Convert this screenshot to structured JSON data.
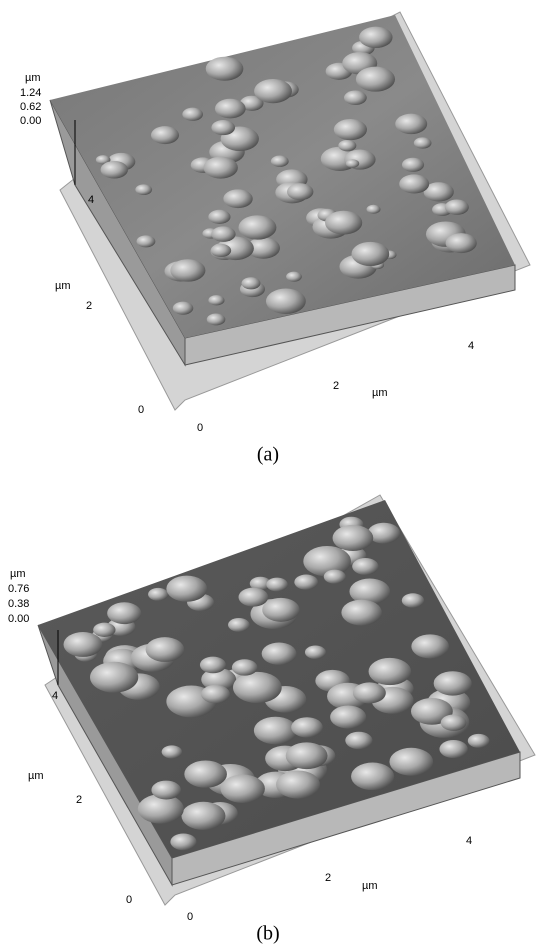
{
  "panels": [
    {
      "label": "(a)",
      "z_unit": "µm",
      "z_ticks": [
        "1.24",
        "0.62",
        "0.00"
      ],
      "y_unit": "µm",
      "y_ticks": [
        "4",
        "2",
        "0"
      ],
      "x_unit": "µm",
      "x_ticks": [
        "0",
        "2",
        "4"
      ]
    },
    {
      "label": "(b)",
      "z_unit": "µm",
      "z_ticks": [
        "0.76",
        "0.38",
        "0.00"
      ],
      "y_unit": "µm",
      "y_ticks": [
        "4",
        "2",
        "0"
      ],
      "x_unit": "µm",
      "x_ticks": [
        "0",
        "2",
        "4"
      ]
    }
  ]
}
